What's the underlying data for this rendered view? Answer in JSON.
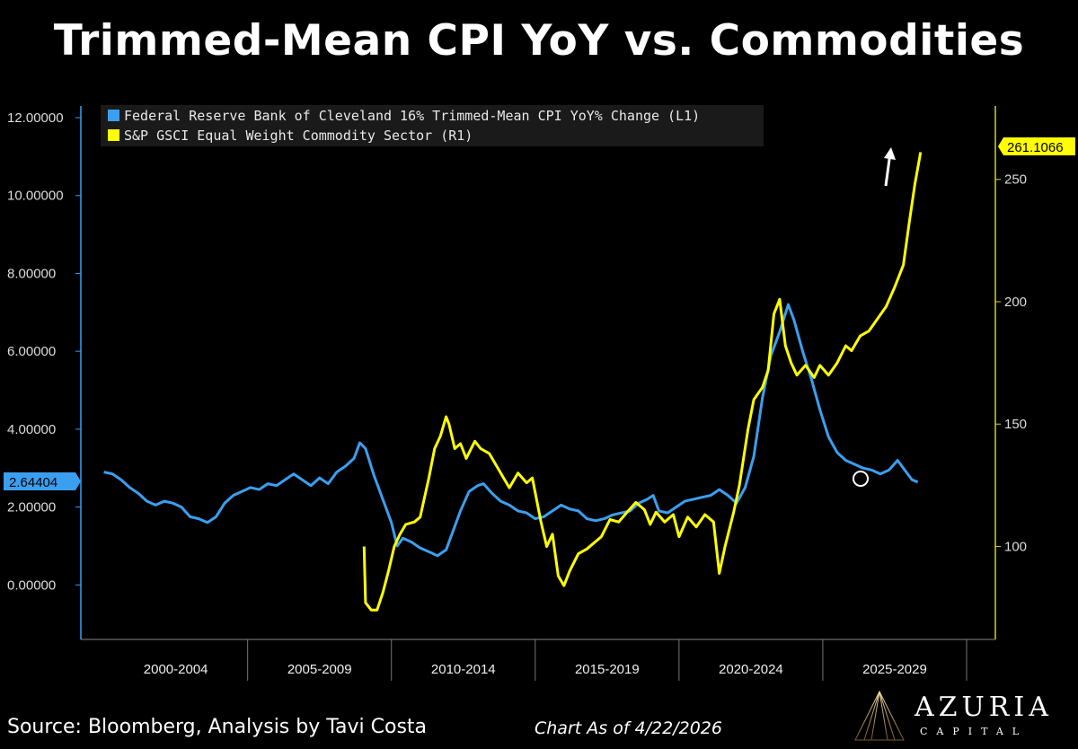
{
  "title": "Trimmed-Mean CPI YoY vs. Commodities",
  "footer": {
    "source": "Source: Bloomberg, Analysis by Tavi Costa",
    "as_of": "Chart As of 4/22/2026"
  },
  "logo": {
    "name": "AZURIA",
    "sub": "CAPITAL"
  },
  "colors": {
    "blue": "#3b9ff0",
    "yellow": "#ffff00",
    "background": "#000000"
  },
  "chart_data": {
    "type": "line",
    "title": "Trimmed-Mean CPI YoY vs. Commodities",
    "x_categories": [
      "2000-2004",
      "2005-2009",
      "2010-2014",
      "2015-2019",
      "2020-2024",
      "2025-2029"
    ],
    "left_axis": {
      "ticks": [
        "12.00000",
        "10.00000",
        "8.00000",
        "6.00000",
        "4.00000",
        "2.00000",
        "0.00000"
      ],
      "range": [
        -1.4,
        12.3
      ]
    },
    "right_axis": {
      "ticks": [
        "250",
        "200",
        "150",
        "100"
      ],
      "range": [
        62,
        280
      ]
    },
    "legend_placement": "top-left",
    "last_value_labels": {
      "left": "2.64404",
      "right": "261.1066"
    },
    "series": [
      {
        "name": "Federal Reserve Bank of Cleveland 16% Trimmed-Mean CPI YoY% Change (L1)",
        "axis": "left",
        "color": "#3b9ff0",
        "points": [
          [
            2000.0,
            2.9
          ],
          [
            2000.3,
            2.85
          ],
          [
            2000.6,
            2.7
          ],
          [
            2000.9,
            2.5
          ],
          [
            2001.2,
            2.35
          ],
          [
            2001.5,
            2.15
          ],
          [
            2001.8,
            2.05
          ],
          [
            2002.1,
            2.15
          ],
          [
            2002.4,
            2.1
          ],
          [
            2002.7,
            2.0
          ],
          [
            2003.0,
            1.75
          ],
          [
            2003.3,
            1.7
          ],
          [
            2003.6,
            1.6
          ],
          [
            2003.9,
            1.75
          ],
          [
            2004.2,
            2.1
          ],
          [
            2004.5,
            2.3
          ],
          [
            2004.8,
            2.4
          ],
          [
            2005.1,
            2.5
          ],
          [
            2005.4,
            2.45
          ],
          [
            2005.7,
            2.6
          ],
          [
            2006.0,
            2.55
          ],
          [
            2006.3,
            2.7
          ],
          [
            2006.6,
            2.85
          ],
          [
            2006.9,
            2.7
          ],
          [
            2007.2,
            2.55
          ],
          [
            2007.5,
            2.75
          ],
          [
            2007.8,
            2.6
          ],
          [
            2008.1,
            2.9
          ],
          [
            2008.4,
            3.05
          ],
          [
            2008.7,
            3.25
          ],
          [
            2008.9,
            3.65
          ],
          [
            2009.1,
            3.5
          ],
          [
            2009.4,
            2.8
          ],
          [
            2009.7,
            2.2
          ],
          [
            2010.0,
            1.6
          ],
          [
            2010.2,
            1.0
          ],
          [
            2010.4,
            1.2
          ],
          [
            2010.7,
            1.1
          ],
          [
            2011.0,
            0.95
          ],
          [
            2011.3,
            0.85
          ],
          [
            2011.6,
            0.75
          ],
          [
            2011.9,
            0.9
          ],
          [
            2012.1,
            1.3
          ],
          [
            2012.4,
            1.9
          ],
          [
            2012.7,
            2.4
          ],
          [
            2013.0,
            2.55
          ],
          [
            2013.2,
            2.6
          ],
          [
            2013.5,
            2.35
          ],
          [
            2013.8,
            2.15
          ],
          [
            2014.1,
            2.05
          ],
          [
            2014.4,
            1.9
          ],
          [
            2014.7,
            1.85
          ],
          [
            2015.0,
            1.7
          ],
          [
            2015.3,
            1.75
          ],
          [
            2015.6,
            1.9
          ],
          [
            2015.9,
            2.05
          ],
          [
            2016.2,
            1.95
          ],
          [
            2016.5,
            1.9
          ],
          [
            2016.8,
            1.7
          ],
          [
            2017.1,
            1.65
          ],
          [
            2017.4,
            1.7
          ],
          [
            2017.7,
            1.8
          ],
          [
            2018.0,
            1.85
          ],
          [
            2018.3,
            1.9
          ],
          [
            2018.6,
            2.1
          ],
          [
            2018.9,
            2.2
          ],
          [
            2019.1,
            2.3
          ],
          [
            2019.3,
            1.9
          ],
          [
            2019.6,
            1.85
          ],
          [
            2019.9,
            2.0
          ],
          [
            2020.2,
            2.15
          ],
          [
            2020.5,
            2.2
          ],
          [
            2020.8,
            2.25
          ],
          [
            2021.1,
            2.3
          ],
          [
            2021.4,
            2.45
          ],
          [
            2021.7,
            2.3
          ],
          [
            2022.0,
            2.1
          ],
          [
            2022.3,
            2.5
          ],
          [
            2022.6,
            3.3
          ],
          [
            2022.9,
            4.8
          ],
          [
            2023.2,
            5.9
          ],
          [
            2023.5,
            6.5
          ],
          [
            2023.8,
            7.2
          ],
          [
            2024.0,
            6.8
          ],
          [
            2024.3,
            6.0
          ],
          [
            2024.6,
            5.3
          ],
          [
            2024.9,
            4.5
          ],
          [
            2025.2,
            3.8
          ],
          [
            2025.5,
            3.4
          ],
          [
            2025.8,
            3.2
          ],
          [
            2026.1,
            3.1
          ],
          [
            2026.4,
            3.0
          ],
          [
            2026.7,
            2.95
          ],
          [
            2027.0,
            2.85
          ],
          [
            2027.3,
            2.95
          ],
          [
            2027.6,
            3.2
          ],
          [
            2027.9,
            2.9
          ],
          [
            2028.1,
            2.7
          ],
          [
            2028.3,
            2.64
          ]
        ]
      },
      {
        "name": "S&P GSCI Equal Weight Commodity Sector (R1)",
        "axis": "right",
        "color": "#ffff00",
        "points": [
          [
            2009.05,
            100
          ],
          [
            2009.1,
            77
          ],
          [
            2009.3,
            74
          ],
          [
            2009.5,
            74
          ],
          [
            2009.7,
            81
          ],
          [
            2009.9,
            90
          ],
          [
            2010.1,
            100
          ],
          [
            2010.3,
            105
          ],
          [
            2010.5,
            109
          ],
          [
            2010.8,
            110
          ],
          [
            2011.0,
            112
          ],
          [
            2011.3,
            128
          ],
          [
            2011.5,
            140
          ],
          [
            2011.7,
            145
          ],
          [
            2011.9,
            153
          ],
          [
            2012.0,
            150
          ],
          [
            2012.2,
            140
          ],
          [
            2012.4,
            142
          ],
          [
            2012.6,
            136
          ],
          [
            2012.9,
            143
          ],
          [
            2013.1,
            140
          ],
          [
            2013.4,
            138
          ],
          [
            2013.7,
            132
          ],
          [
            2013.9,
            128
          ],
          [
            2014.1,
            124
          ],
          [
            2014.4,
            130
          ],
          [
            2014.7,
            126
          ],
          [
            2014.9,
            128
          ],
          [
            2015.2,
            110
          ],
          [
            2015.4,
            100
          ],
          [
            2015.6,
            105
          ],
          [
            2015.8,
            88
          ],
          [
            2016.0,
            84
          ],
          [
            2016.2,
            90
          ],
          [
            2016.5,
            97
          ],
          [
            2016.8,
            99
          ],
          [
            2017.0,
            101
          ],
          [
            2017.3,
            104
          ],
          [
            2017.6,
            111
          ],
          [
            2017.9,
            110
          ],
          [
            2018.2,
            114
          ],
          [
            2018.5,
            118
          ],
          [
            2018.8,
            115
          ],
          [
            2019.0,
            109
          ],
          [
            2019.2,
            114
          ],
          [
            2019.5,
            110
          ],
          [
            2019.8,
            113
          ],
          [
            2020.0,
            104
          ],
          [
            2020.3,
            112
          ],
          [
            2020.6,
            108
          ],
          [
            2020.9,
            113
          ],
          [
            2021.2,
            110
          ],
          [
            2021.4,
            89
          ],
          [
            2021.6,
            100
          ],
          [
            2021.9,
            114
          ],
          [
            2022.1,
            125
          ],
          [
            2022.4,
            148
          ],
          [
            2022.6,
            160
          ],
          [
            2022.9,
            165
          ],
          [
            2023.1,
            172
          ],
          [
            2023.3,
            195
          ],
          [
            2023.5,
            201
          ],
          [
            2023.7,
            182
          ],
          [
            2023.9,
            175
          ],
          [
            2024.1,
            170
          ],
          [
            2024.4,
            174
          ],
          [
            2024.7,
            169
          ],
          [
            2024.9,
            174
          ],
          [
            2025.2,
            170
          ],
          [
            2025.5,
            175
          ],
          [
            2025.8,
            182
          ],
          [
            2026.0,
            180
          ],
          [
            2026.3,
            186
          ],
          [
            2026.6,
            188
          ],
          [
            2026.9,
            193
          ],
          [
            2027.2,
            198
          ],
          [
            2027.5,
            206
          ],
          [
            2027.8,
            215
          ],
          [
            2028.0,
            232
          ],
          [
            2028.2,
            248
          ],
          [
            2028.4,
            261.1
          ]
        ]
      }
    ]
  }
}
